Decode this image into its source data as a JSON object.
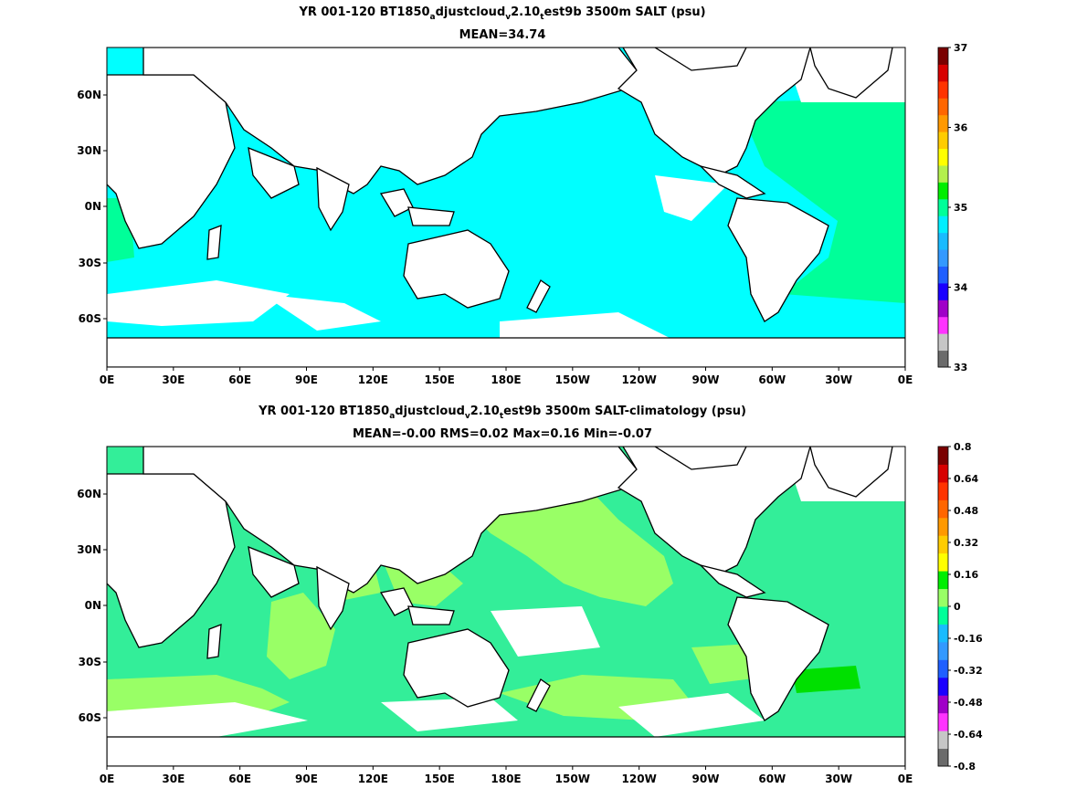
{
  "panels": [
    {
      "title": {
        "pre": "YR 001-120 BT1850",
        "sub1": "a",
        "mid1": "djustcloud",
        "sub2": "v",
        "mid2": "2.10",
        "sub3": "t",
        "post": "est9b 3500m SALT (psu)"
      },
      "stats": "MEAN=34.74",
      "colorbar": {
        "labels": [
          "37",
          "36",
          "35",
          "34",
          "33"
        ],
        "colors": [
          "#6b6b6b",
          "#c6c6c6",
          "#ff33ff",
          "#a000c8",
          "#1a00ff",
          "#1f5fff",
          "#3399ff",
          "#19bbff",
          "#00eeff",
          "#00ff99",
          "#00ee00",
          "#b3f04d",
          "#ffff00",
          "#ffcc00",
          "#ff9900",
          "#ff6600",
          "#ff3300",
          "#d70000",
          "#7a0000"
        ]
      },
      "ocean_color": "#00ffff",
      "patch_color": "#00ff99"
    },
    {
      "title": {
        "pre": "YR 001-120 BT1850",
        "sub1": "a",
        "mid1": "djustcloud",
        "sub2": "v",
        "mid2": "2.10",
        "sub3": "t",
        "post": "est9b 3500m SALT-climatology (psu)"
      },
      "stats": "MEAN=-0.00   RMS=0.02   Max=0.16   Min=-0.07",
      "colorbar": {
        "labels": [
          "0.8",
          "0.64",
          "0.48",
          "0.32",
          "0.16",
          "0",
          "-0.16",
          "-0.32",
          "-0.48",
          "-0.64",
          "-0.8"
        ],
        "colors": [
          "#6b6b6b",
          "#c6c6c6",
          "#ff33ff",
          "#a000c8",
          "#1a00ff",
          "#1f5fff",
          "#3399ff",
          "#19bbff",
          "#00ff99",
          "#99ff66",
          "#00ee00",
          "#ffff00",
          "#ffcc00",
          "#ff9900",
          "#ff6600",
          "#ff3300",
          "#d70000",
          "#7a0000"
        ]
      },
      "ocean_color": "#33ee99",
      "patch_color": "#99ff66"
    }
  ],
  "x_labels": [
    "0E",
    "30E",
    "60E",
    "90E",
    "120E",
    "150E",
    "180E",
    "150W",
    "120W",
    "90W",
    "60W",
    "30W",
    "0E"
  ],
  "y_labels": [
    "60N",
    "30N",
    "0N",
    "30S",
    "60S"
  ]
}
